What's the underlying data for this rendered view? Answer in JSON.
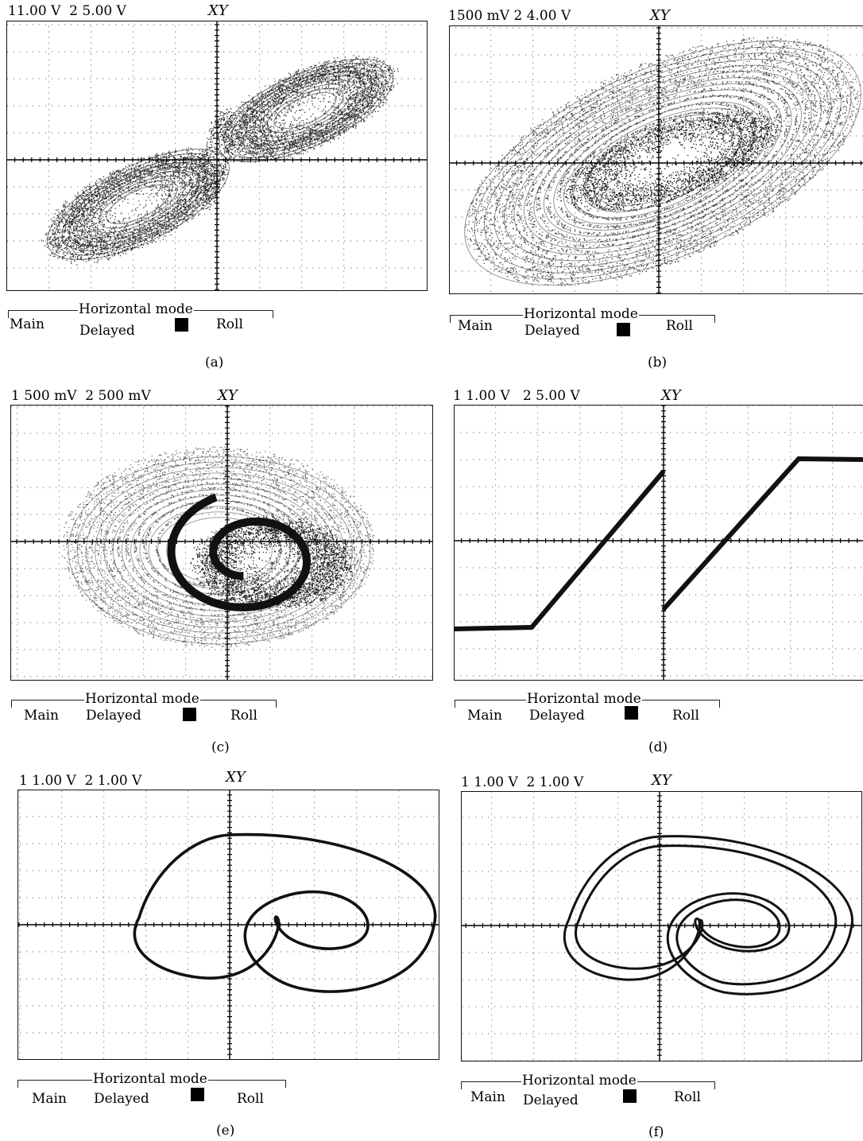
{
  "panels": [
    {
      "id": "a",
      "header": "11.00 V  2 5.00 V",
      "xy_label": "XY",
      "caption": "(a)",
      "trace": "double-scroll-cloud"
    },
    {
      "id": "b",
      "header": "1500 mV 2 4.00 V",
      "xy_label": "XY",
      "caption": "(b)",
      "trace": "single-scroll-cloud"
    },
    {
      "id": "c",
      "header": "1 500 mV  2 500 mV",
      "xy_label": "XY",
      "caption": "(c)",
      "trace": "spiral-cloud"
    },
    {
      "id": "d",
      "header": "1 1.00 V   2 5.00 V",
      "xy_label": "XY",
      "caption": "(d)",
      "trace": "sawtooth-nonlinearity"
    },
    {
      "id": "e",
      "header": "1 1.00 V  2 1.00 V",
      "xy_label": "XY",
      "caption": "(e)",
      "trace": "period-1-limit-cycle"
    },
    {
      "id": "f",
      "header": "1 1.00 V  2 1.00 V",
      "xy_label": "XY",
      "caption": "(f)",
      "trace": "period-2-limit-cycle"
    }
  ],
  "horizontal_mode": {
    "title": "Horizontal mode",
    "main": "Main",
    "delayed": "Delayed",
    "roll": "Roll"
  },
  "colors": {
    "trace": "#111111",
    "grid_dots": "#666666",
    "axis": "#000000"
  }
}
